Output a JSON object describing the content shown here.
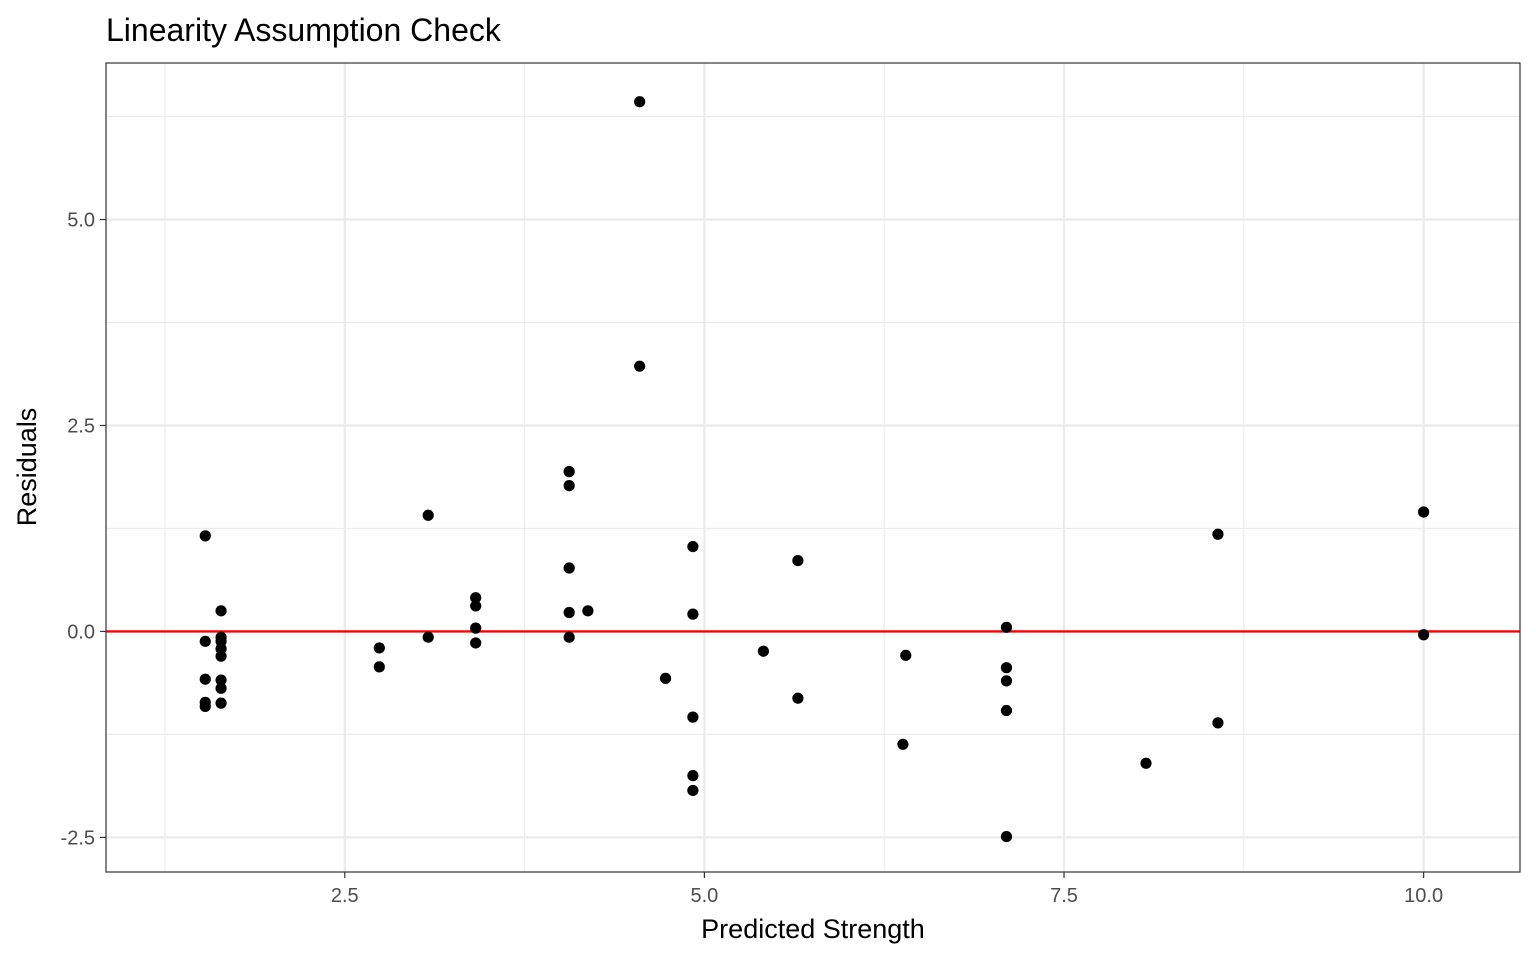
{
  "chart_data": {
    "type": "scatter",
    "title": "Linearity Assumption Check",
    "xlabel": "Predicted Strength",
    "ylabel": "Residuals",
    "xlim": [
      0.84,
      10.67
    ],
    "ylim": [
      -2.92,
      6.9
    ],
    "x_ticks": [
      2.5,
      5.0,
      7.5,
      10.0
    ],
    "x_tick_labels": [
      "2.5",
      "5.0",
      "7.5",
      "10.0"
    ],
    "y_ticks": [
      -2.5,
      0.0,
      2.5,
      5.0
    ],
    "y_tick_labels": [
      "-2.5",
      "0.0",
      "2.5",
      "5.0"
    ],
    "x_minor": [
      1.25,
      3.75,
      6.25,
      8.75
    ],
    "y_minor": [
      -1.25,
      1.25,
      3.75,
      6.25
    ],
    "grid": true,
    "reference_line": {
      "y": 0,
      "color": "#ff0000"
    },
    "point_color": "#000000",
    "points": [
      {
        "x": 1.53,
        "y": 1.16
      },
      {
        "x": 1.53,
        "y": -0.12
      },
      {
        "x": 1.53,
        "y": -0.58
      },
      {
        "x": 1.53,
        "y": -0.86
      },
      {
        "x": 1.53,
        "y": -0.91
      },
      {
        "x": 1.64,
        "y": 0.25
      },
      {
        "x": 1.64,
        "y": -0.07
      },
      {
        "x": 1.64,
        "y": -0.12
      },
      {
        "x": 1.64,
        "y": -0.21
      },
      {
        "x": 1.64,
        "y": -0.3
      },
      {
        "x": 1.64,
        "y": -0.59
      },
      {
        "x": 1.64,
        "y": -0.69
      },
      {
        "x": 1.64,
        "y": -0.87
      },
      {
        "x": 2.74,
        "y": -0.2
      },
      {
        "x": 2.74,
        "y": -0.43
      },
      {
        "x": 3.08,
        "y": 1.41
      },
      {
        "x": 3.08,
        "y": -0.07
      },
      {
        "x": 3.41,
        "y": 0.41
      },
      {
        "x": 3.41,
        "y": 0.31
      },
      {
        "x": 3.41,
        "y": 0.04
      },
      {
        "x": 3.41,
        "y": -0.14
      },
      {
        "x": 4.06,
        "y": 1.94
      },
      {
        "x": 4.06,
        "y": 1.77
      },
      {
        "x": 4.06,
        "y": 0.77
      },
      {
        "x": 4.06,
        "y": 0.23
      },
      {
        "x": 4.06,
        "y": -0.07
      },
      {
        "x": 4.19,
        "y": 0.25
      },
      {
        "x": 4.55,
        "y": 6.43
      },
      {
        "x": 4.55,
        "y": 3.22
      },
      {
        "x": 4.73,
        "y": -0.57
      },
      {
        "x": 4.92,
        "y": 1.03
      },
      {
        "x": 4.92,
        "y": 0.21
      },
      {
        "x": 4.92,
        "y": -1.04
      },
      {
        "x": 4.92,
        "y": -1.75
      },
      {
        "x": 4.92,
        "y": -1.93
      },
      {
        "x": 5.41,
        "y": -0.24
      },
      {
        "x": 5.65,
        "y": 0.86
      },
      {
        "x": 5.65,
        "y": -0.81
      },
      {
        "x": 6.38,
        "y": -1.37
      },
      {
        "x": 6.4,
        "y": -0.29
      },
      {
        "x": 7.1,
        "y": 0.05
      },
      {
        "x": 7.1,
        "y": -0.44
      },
      {
        "x": 7.1,
        "y": -0.6
      },
      {
        "x": 7.1,
        "y": -0.96
      },
      {
        "x": 7.1,
        "y": -2.49
      },
      {
        "x": 8.07,
        "y": -1.6
      },
      {
        "x": 8.57,
        "y": 1.18
      },
      {
        "x": 8.57,
        "y": -1.11
      },
      {
        "x": 10.0,
        "y": 1.45
      },
      {
        "x": 10.0,
        "y": -0.04
      }
    ]
  }
}
